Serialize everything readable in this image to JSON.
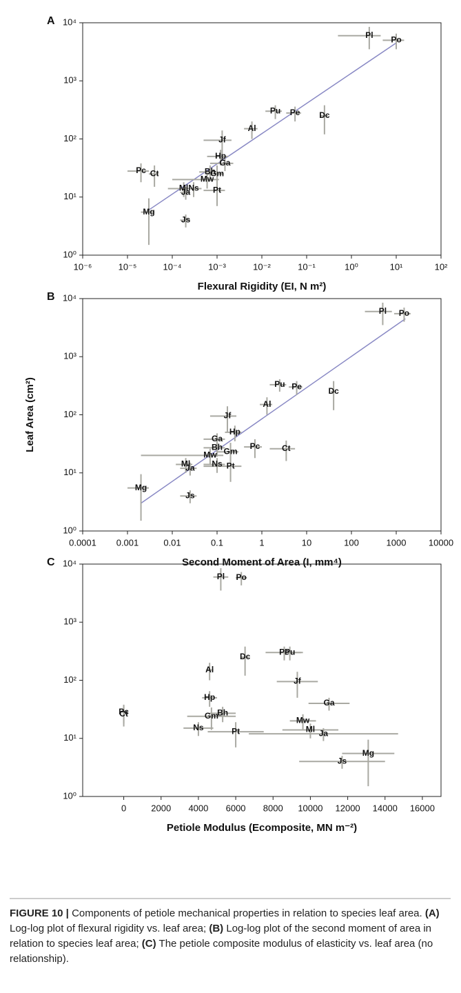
{
  "chart_data": [
    {
      "type": "scatter",
      "panel": "A",
      "xlabel": "Flexural Rigidity (EI, N m²)",
      "xlog": true,
      "ylog": true,
      "xlim": [
        1e-06,
        100
      ],
      "ylim": [
        1,
        10000
      ],
      "xticks": [
        {
          "value": 1e-06,
          "label": "10⁻⁶"
        },
        {
          "value": 1e-05,
          "label": "10⁻⁵"
        },
        {
          "value": 0.0001,
          "label": "10⁻⁴"
        },
        {
          "value": 0.001,
          "label": "10⁻³"
        },
        {
          "value": 0.01,
          "label": "10⁻²"
        },
        {
          "value": 0.1,
          "label": "10⁻¹"
        },
        {
          "value": 1,
          "label": "10⁰"
        },
        {
          "value": 10,
          "label": "10¹"
        },
        {
          "value": 100,
          "label": "10²"
        }
      ],
      "yticks": [
        {
          "value": 1,
          "label": "10⁰"
        },
        {
          "value": 10,
          "label": "10¹"
        },
        {
          "value": 100,
          "label": "10²"
        },
        {
          "value": 1000,
          "label": "10³"
        },
        {
          "value": 10000,
          "label": "10⁴"
        }
      ],
      "color": "#a9a9a2",
      "line_color": "#8888c4",
      "labels": [
        "Pl",
        "Po",
        "Pu",
        "Pe",
        "Dc",
        "Al",
        "Jf",
        "Hp",
        "Ga",
        "Bh",
        "Gm",
        "Mw",
        "Pc",
        "Ct",
        "Ml",
        "Ns",
        "Ja",
        "Pt",
        "Mg",
        "Js"
      ],
      "x": [
        2.5,
        10,
        0.02,
        0.055,
        0.25,
        0.006,
        0.0013,
        0.0012,
        0.0015,
        0.0007,
        0.001,
        0.0006,
        2e-05,
        4e-05,
        0.00018,
        0.0003,
        0.0002,
        0.001,
        3e-05,
        0.0002
      ],
      "values": [
        6000,
        5000,
        300,
        280,
        250,
        150,
        95,
        50,
        38,
        27,
        25,
        20,
        28,
        25,
        14,
        14,
        12,
        13,
        5.5,
        4
      ],
      "xerr": [
        2,
        5,
        0.008,
        0.02,
        0.05,
        0.002,
        0.0008,
        0.0006,
        0.0008,
        0.0003,
        0.0004,
        0.0005,
        1e-05,
        1e-05,
        0.0001,
        0.00015,
        5e-05,
        0.0005,
        1e-05,
        5e-05
      ],
      "yerr": [
        2500,
        1500,
        80,
        80,
        130,
        50,
        45,
        15,
        10,
        8,
        10,
        6,
        10,
        10,
        4,
        4,
        3,
        6,
        4,
        1
      ],
      "trend": {
        "x": [
          3e-05,
          10
        ],
        "values": [
          6,
          4500
        ]
      }
    },
    {
      "type": "scatter",
      "panel": "B",
      "xlabel": "Second Moment of Area (I, mm⁴)",
      "ylabel": "Leaf Area (cm²)",
      "xlog": true,
      "ylog": true,
      "xlim": [
        0.0001,
        10000
      ],
      "ylim": [
        1,
        10000
      ],
      "xticks": [
        0.0001,
        0.001,
        0.01,
        0.1,
        1,
        10,
        100,
        1000,
        10000
      ],
      "yticks": [
        {
          "value": 1,
          "label": "10⁰"
        },
        {
          "value": 10,
          "label": "10¹"
        },
        {
          "value": 100,
          "label": "10²"
        },
        {
          "value": 1000,
          "label": "10³"
        },
        {
          "value": 10000,
          "label": "10⁴"
        }
      ],
      "color": "#a9a9a2",
      "line_color": "#8888c4",
      "labels": [
        "Pl",
        "Po",
        "Pu",
        "Pe",
        "Dc",
        "Al",
        "Jf",
        "Hp",
        "Ga",
        "Pc",
        "Ct",
        "Bh",
        "Gm",
        "Mw",
        "Ns",
        "Ml",
        "Ja",
        "Pt",
        "Mg",
        "Js"
      ],
      "x": [
        500,
        1500,
        2.5,
        6,
        40,
        1.3,
        0.17,
        0.25,
        0.1,
        0.7,
        3.5,
        0.1,
        0.2,
        0.07,
        0.1,
        0.02,
        0.025,
        0.2,
        0.002,
        0.025
      ],
      "values": [
        6000,
        5500,
        330,
        300,
        250,
        150,
        95,
        50,
        38,
        28,
        26,
        27,
        23,
        20,
        14,
        14,
        12,
        13,
        5.5,
        4
      ],
      "xerr": [
        300,
        600,
        1,
        2,
        5,
        0.4,
        0.1,
        0.1,
        0.05,
        0.3,
        2,
        0.05,
        0.1,
        0.068,
        0.05,
        0.008,
        0.01,
        0.15,
        0.001,
        0.01
      ],
      "yerr": [
        2500,
        1500,
        80,
        80,
        130,
        50,
        45,
        15,
        10,
        10,
        10,
        8,
        10,
        6,
        4,
        4,
        3,
        6,
        4,
        1
      ],
      "trend": {
        "x": [
          0.002,
          1600
        ],
        "values": [
          3,
          4500
        ]
      }
    },
    {
      "type": "scatter",
      "panel": "C",
      "xlabel": "Petiole Modulus (Ecomposite, MN m⁻²)",
      "xlog": false,
      "ylog": true,
      "xlim": [
        -2200,
        17000
      ],
      "ylim": [
        1,
        10000
      ],
      "xticks": [
        0,
        2000,
        4000,
        6000,
        8000,
        10000,
        12000,
        14000,
        16000
      ],
      "yticks": [
        {
          "value": 1,
          "label": "10⁰"
        },
        {
          "value": 10,
          "label": "10¹"
        },
        {
          "value": 100,
          "label": "10²"
        },
        {
          "value": 1000,
          "label": "10³"
        },
        {
          "value": 10000,
          "label": "10⁴"
        }
      ],
      "color": "#a9a9a2",
      "labels": [
        "Pl",
        "Po",
        "Pe",
        "Pu",
        "Dc",
        "Al",
        "Jf",
        "Hp",
        "Ga",
        "Pc",
        "Ct",
        "Bh",
        "Gm",
        "Mw",
        "Ml",
        "Ja",
        "Ns",
        "Pt",
        "Mg",
        "Js"
      ],
      "x": [
        5200,
        6300,
        8600,
        8900,
        6500,
        4600,
        9300,
        4600,
        11000,
        0,
        0,
        5300,
        4700,
        9600,
        10000,
        10700,
        4000,
        6000,
        13100,
        11700
      ],
      "values": [
        6000,
        5800,
        300,
        300,
        250,
        150,
        95,
        50,
        40,
        28,
        26,
        27,
        24,
        20,
        14,
        12,
        15,
        13,
        5.5,
        4
      ],
      "xerr": [
        400,
        300,
        1000,
        600,
        200,
        200,
        1100,
        400,
        1100,
        50,
        50,
        700,
        1300,
        700,
        1500,
        4000,
        800,
        1500,
        1400,
        2300
      ],
      "yerr": [
        2500,
        1500,
        80,
        80,
        130,
        50,
        45,
        15,
        10,
        10,
        10,
        8,
        10,
        6,
        4,
        3,
        4,
        6,
        4,
        1
      ]
    }
  ],
  "caption": [
    {
      "text": "FIGURE 10 |",
      "bold": true
    },
    {
      "text": "Components of petiole mechanical properties in relation to species leaf area."
    },
    {
      "text": "(A)",
      "bold": true
    },
    {
      "text": "Log-log plot of flexural rigidity vs. leaf area;"
    },
    {
      "text": "(B)",
      "bold": true
    },
    {
      "text": "Log-log plot of the second moment of area in relation to species leaf area;"
    },
    {
      "text": "(C)",
      "bold": true
    },
    {
      "text": "The petiole composite modulus of elasticity vs. leaf area (no relationship)."
    }
  ]
}
